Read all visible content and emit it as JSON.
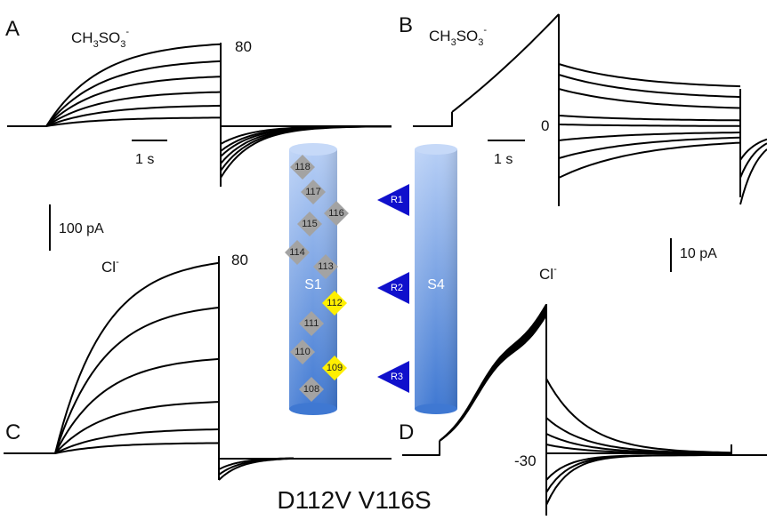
{
  "panels": {
    "A": {
      "letter": "A",
      "ion": "CH",
      "ion_sub1": "3",
      "ion_mid": "SO",
      "ion_sub2": "3",
      "ion_sup": "-",
      "voltage": "80"
    },
    "B": {
      "letter": "B",
      "ion": "CH",
      "ion_sub1": "3",
      "ion_mid": "SO",
      "ion_sub2": "3",
      "ion_sup": "-",
      "voltage": "0"
    },
    "C": {
      "letter": "C",
      "ion": "Cl",
      "ion_sup": "-",
      "voltage": "80"
    },
    "D": {
      "letter": "D",
      "ion": "Cl",
      "ion_sup": "-",
      "voltage": "-30"
    }
  },
  "scale_bars": {
    "time_left": "1 s",
    "time_right": "1 s",
    "current_left": "100 pA",
    "current_right": "10 pA"
  },
  "helices": {
    "s1_label": "S1",
    "s4_label": "S4",
    "s1_residues": [
      {
        "label": "118",
        "highlight": false
      },
      {
        "label": "117",
        "highlight": false
      },
      {
        "label": "116",
        "highlight": false
      },
      {
        "label": "115",
        "highlight": false
      },
      {
        "label": "114",
        "highlight": false
      },
      {
        "label": "113",
        "highlight": false
      },
      {
        "label": "112",
        "highlight": true
      },
      {
        "label": "111",
        "highlight": false
      },
      {
        "label": "110",
        "highlight": false
      },
      {
        "label": "109",
        "highlight": true
      },
      {
        "label": "108",
        "highlight": false
      }
    ],
    "s4_arginines": [
      {
        "label": "R1"
      },
      {
        "label": "R2"
      },
      {
        "label": "R3"
      }
    ]
  },
  "caption": "D112V V116S",
  "colors": {
    "residue_gray": "#a3a3a3",
    "residue_highlight": "#ffef00",
    "arginine": "#1010cc",
    "helix_top": "#b7cff6",
    "helix_bottom": "#3f78d2"
  }
}
